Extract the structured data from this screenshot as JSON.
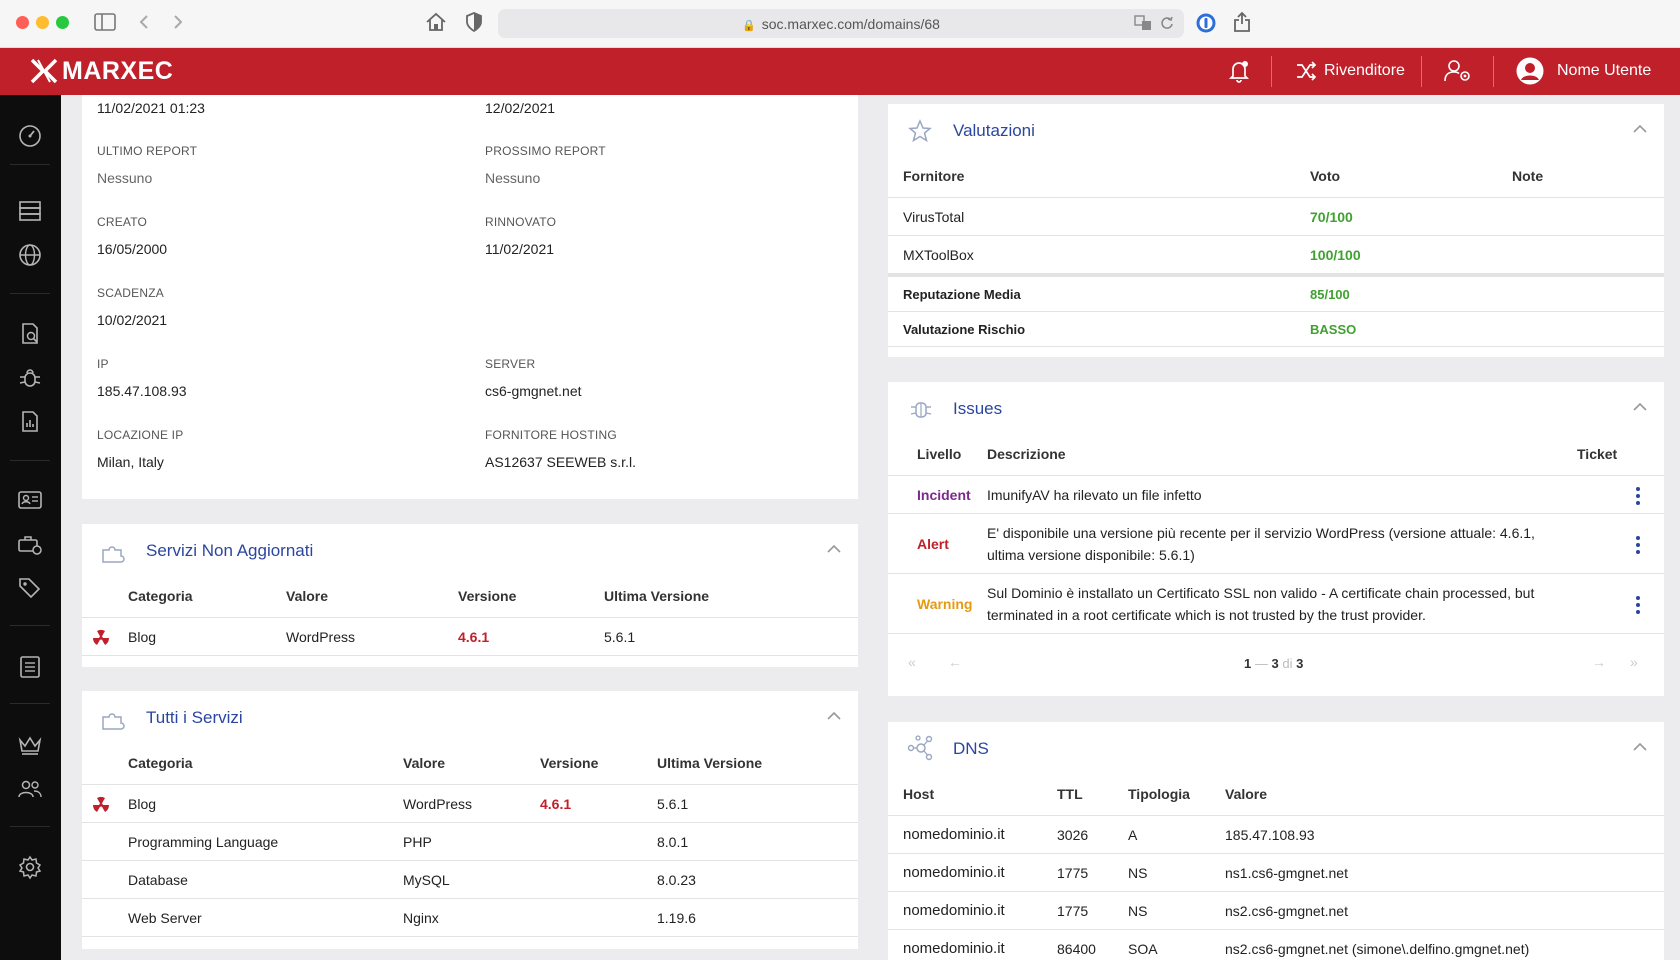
{
  "browser": {
    "url": "soc.marxec.com/domains/68"
  },
  "header": {
    "brand": "MARXEC",
    "reseller_label": "Rivenditore",
    "user_label": "Nome Utente"
  },
  "sidebar": {
    "items": [
      "dashboard-icon",
      "servers-icon",
      "globe-icon",
      "document-search-icon",
      "bug-icon",
      "report-icon",
      "contact-card-icon",
      "toolbox-icon",
      "tags-icon",
      "checklist-icon",
      "crown-icon",
      "users-icon",
      "settings-icon"
    ]
  },
  "details": {
    "top_left_value": "11/02/2021 01:23",
    "top_right_value": "12/02/2021",
    "ultimo_report_label": "ULTIMO REPORT",
    "ultimo_report_value": "Nessuno",
    "prossimo_report_label": "PROSSIMO REPORT",
    "prossimo_report_value": "Nessuno",
    "creato_label": "CREATO",
    "creato_value": "16/05/2000",
    "rinnovato_label": "RINNOVATO",
    "rinnovato_value": "11/02/2021",
    "scadenza_label": "SCADENZA",
    "scadenza_value": "10/02/2021",
    "ip_label": "IP",
    "ip_value": "185.47.108.93",
    "server_label": "SERVER",
    "server_value": "cs6-gmgnet.net",
    "locazione_label": "LOCAZIONE IP",
    "locazione_value": "Milan, Italy",
    "fornitore_label": "FORNITORE HOSTING",
    "fornitore_value": "AS12637 SEEWEB s.r.l."
  },
  "servizi_non_aggiornati": {
    "title": "Servizi Non Aggiornati",
    "columns": [
      "Categoria",
      "Valore",
      "Versione",
      "Ultima Versione"
    ],
    "rows": [
      {
        "categoria": "Blog",
        "valore": "WordPress",
        "versione": "4.6.1",
        "ultima": "5.6.1"
      }
    ]
  },
  "tutti_servizi": {
    "title": "Tutti i Servizi",
    "columns": [
      "Categoria",
      "Valore",
      "Versione",
      "Ultima Versione"
    ],
    "rows": [
      {
        "categoria": "Blog",
        "valore": "WordPress",
        "versione": "4.6.1",
        "ultima": "5.6.1"
      },
      {
        "categoria": "Programming Language",
        "valore": "PHP",
        "versione": "",
        "ultima": "8.0.1"
      },
      {
        "categoria": "Database",
        "valore": "MySQL",
        "versione": "",
        "ultima": "8.0.23"
      },
      {
        "categoria": "Web Server",
        "valore": "Nginx",
        "versione": "",
        "ultima": "1.19.6"
      }
    ]
  },
  "valutazioni": {
    "title": "Valutazioni",
    "columns": [
      "Fornitore",
      "Voto",
      "Note"
    ],
    "rows": [
      {
        "fornitore": "VirusTotal",
        "voto": "70/100"
      },
      {
        "fornitore": "MXToolBox",
        "voto": "100/100"
      }
    ],
    "summary": [
      {
        "label": "Reputazione Media",
        "value": "85/100"
      },
      {
        "label": "Valutazione Rischio",
        "value": "BASSO"
      }
    ]
  },
  "issues": {
    "title": "Issues",
    "columns": [
      "Livello",
      "Descrizione",
      "Ticket"
    ],
    "rows": [
      {
        "livello": "Incident",
        "descrizione": [
          "ImunifyAV ha rilevato un file infetto"
        ]
      },
      {
        "livello": "Alert",
        "descrizione": [
          "E' disponibile una versione più recente per il servizio WordPress (versione attuale: 4.6.1,",
          "ultima versione disponibile: 5.6.1)"
        ]
      },
      {
        "livello": "Warning",
        "descrizione": [
          "Sul Dominio è installato un Certificato SSL non valido - A certificate chain processed, but",
          "terminated in a root certificate which is not trusted by the trust provider."
        ]
      }
    ],
    "pagination": {
      "from": "1",
      "sep": "—",
      "to": "3",
      "of_label": "di",
      "total": "3"
    }
  },
  "dns": {
    "title": "DNS",
    "columns": [
      "Host",
      "TTL",
      "Tipologia",
      "Valore"
    ],
    "rows": [
      {
        "host": "nomedominio.it",
        "ttl": "3026",
        "tipo": "A",
        "valore": "185.47.108.93"
      },
      {
        "host": "nomedominio.it",
        "ttl": "1775",
        "tipo": "NS",
        "valore": "ns1.cs6-gmgnet.net"
      },
      {
        "host": "nomedominio.it",
        "ttl": "1775",
        "tipo": "NS",
        "valore": "ns2.cs6-gmgnet.net"
      },
      {
        "host": "nomedominio.it",
        "ttl": "86400",
        "tipo": "SOA",
        "valore": "ns2.cs6-gmgnet.net (simone\\.delfino.gmgnet.net)"
      }
    ]
  },
  "colors": {
    "brand_red": "#c0202a",
    "link_blue": "#2b46a0",
    "ok_green": "#3fa12f",
    "incident_purple": "#7a2a8a",
    "warning_orange": "#e59a12"
  }
}
